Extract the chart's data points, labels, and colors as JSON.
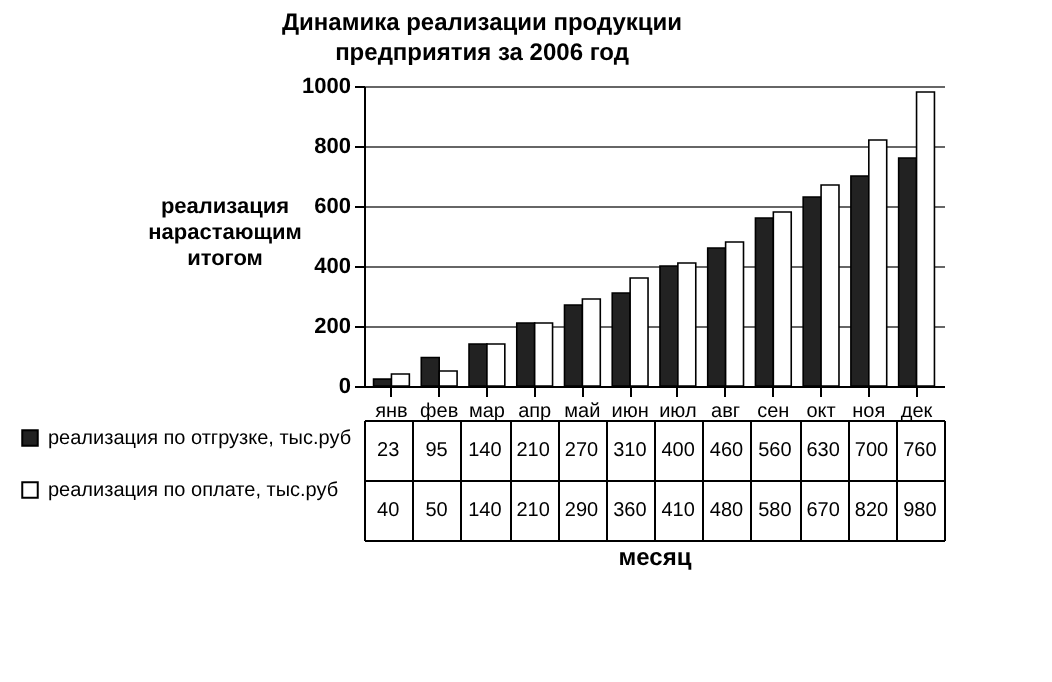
{
  "chart_data": {
    "type": "bar",
    "title": "Динамика реализации продукции  предприятия за 2006 год",
    "xlabel": "месяц",
    "ylabel": "реализация нарастающим итогом",
    "categories": [
      "янв",
      "фев",
      "мар",
      "апр",
      "май",
      "июн",
      "июл",
      "авг",
      "сен",
      "окт",
      "ноя",
      "дек"
    ],
    "series": [
      {
        "name": "реализация по отгрузке, тыс.руб",
        "color": "#222222",
        "values": [
          23,
          95,
          140,
          210,
          270,
          310,
          400,
          460,
          560,
          630,
          700,
          760
        ]
      },
      {
        "name": "реализация по оплате, тыс.руб",
        "color": "#ffffff",
        "values": [
          40,
          50,
          140,
          210,
          290,
          360,
          410,
          480,
          580,
          670,
          820,
          980
        ]
      }
    ],
    "ylim": [
      0,
      1000
    ],
    "yticks": [
      0,
      200,
      400,
      600,
      800,
      1000
    ],
    "grid": "y",
    "legend": "bottom",
    "data_labels": true
  }
}
